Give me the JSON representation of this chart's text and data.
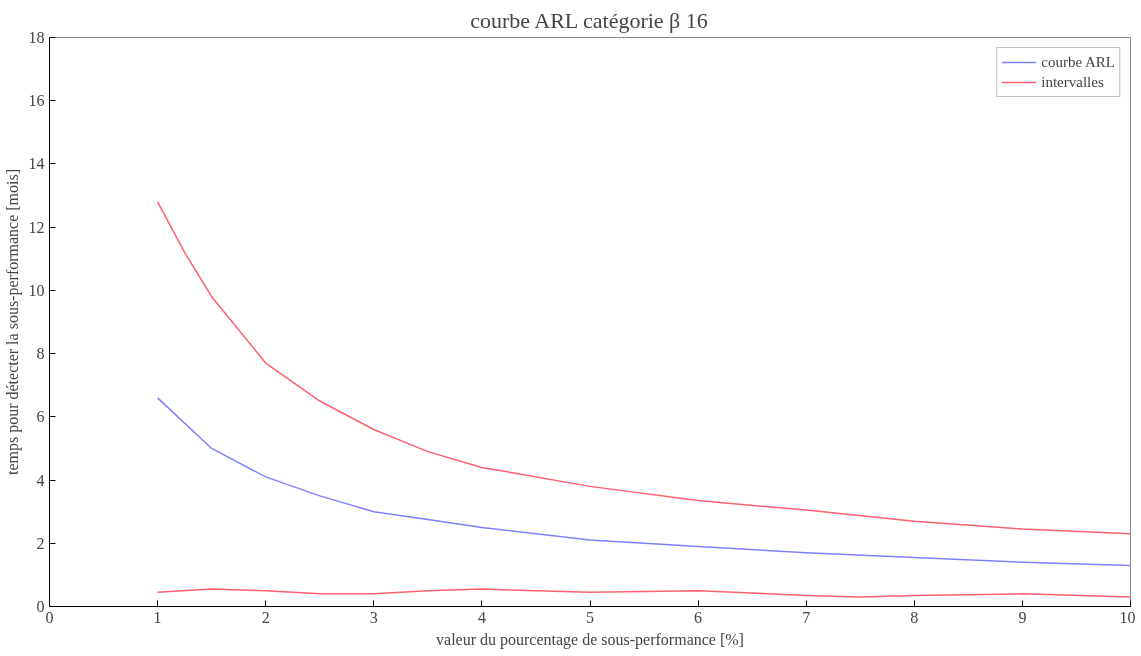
{
  "chart_data": {
    "type": "line",
    "title": "courbe ARL catégorie β 16",
    "xlabel": "valeur du pourcentage de sous-performance [%]",
    "ylabel": "temps pour détecter la sous-performance [mois]",
    "xlim": [
      0,
      10
    ],
    "ylim": [
      0,
      18
    ],
    "xticks": [
      0,
      1,
      2,
      3,
      4,
      5,
      6,
      7,
      8,
      9,
      10
    ],
    "yticks": [
      0,
      2,
      4,
      6,
      8,
      10,
      12,
      14,
      16,
      18
    ],
    "grid": false,
    "legend": "top right",
    "marker": "none",
    "line_style": "solid",
    "series": [
      {
        "name": "courbe ARL",
        "color": "#8080ff",
        "x": [
          1,
          1.5,
          2,
          2.5,
          3,
          3.5,
          4,
          5,
          6,
          7,
          8,
          9,
          10
        ],
        "values": [
          6.6,
          5.0,
          4.1,
          3.5,
          3.0,
          2.75,
          2.5,
          2.1,
          1.9,
          1.7,
          1.55,
          1.4,
          1.3
        ]
      },
      {
        "name": "intervalles",
        "color": "#ff6070",
        "x": [
          1,
          1.25,
          1.5,
          2,
          2.5,
          3,
          3.5,
          4,
          5,
          6,
          7,
          8,
          9,
          10
        ],
        "values": [
          12.8,
          11.2,
          9.8,
          7.7,
          6.5,
          5.6,
          4.9,
          4.4,
          3.8,
          3.35,
          3.05,
          2.7,
          2.45,
          2.3
        ]
      },
      {
        "color": "#ff6070",
        "x": [
          1,
          1.5,
          2,
          2.5,
          3,
          3.5,
          4,
          4.5,
          5,
          6,
          7,
          7.5,
          8,
          9,
          10
        ],
        "values": [
          0.45,
          0.55,
          0.5,
          0.4,
          0.4,
          0.5,
          0.55,
          0.5,
          0.45,
          0.5,
          0.35,
          0.3,
          0.35,
          0.4,
          0.3
        ]
      }
    ]
  }
}
